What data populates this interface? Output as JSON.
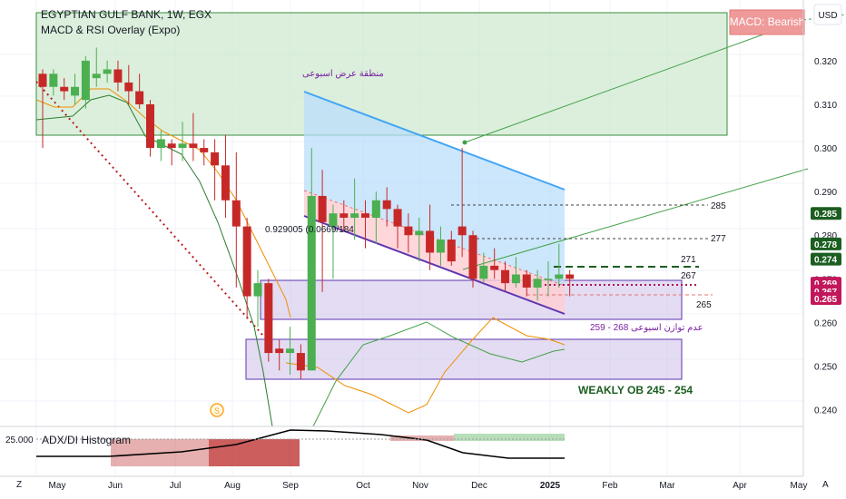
{
  "header": {
    "symbol": "EGYPTIAN GULF BANK, 1W, EGX",
    "indicator": "MACD & RSI Overlay (Expo)"
  },
  "currency_button": "USD",
  "macd_badge": "MACD: Bearish",
  "annotations": {
    "supply_zone": "منطقة عرض اسبوعى",
    "imbalance": "عدم توازن اسبوعى 268 - 259",
    "weekly_ob": "WEAKLY OB  245 - 254",
    "ratio_text": "0.929005 (0.0669/184",
    "levels": [
      "285",
      "277",
      "271",
      "267",
      "265"
    ]
  },
  "lower_pane": {
    "label": "ADX/DI Histogram",
    "value_label": "25.000"
  },
  "axis_bottom_left": "Z",
  "axis_bottom_right": "A",
  "colors": {
    "up": "#4caf50",
    "down": "#c62828",
    "supply_zone": "#388e3c",
    "imbalance_zone": "#7e57c2",
    "tag_green": "#1b5e20",
    "tag_purple": "#c2185b"
  },
  "icons": {
    "dividend_marker": "dividend-s-icon"
  },
  "chart_data": {
    "type": "candlestick",
    "timeframe": "1W",
    "x_labels": [
      "May",
      "Jun",
      "Jul",
      "Aug",
      "Sep",
      "Oct",
      "Nov",
      "Dec",
      "2025",
      "Feb",
      "Mar",
      "Apr",
      "May"
    ],
    "y_ticks": [
      "0.320",
      "0.310",
      "0.300",
      "0.290",
      "0.280",
      "0.270",
      "0.260",
      "0.250",
      "0.240"
    ],
    "ylim": [
      0.237,
      0.331
    ],
    "candles": [
      [
        0.317,
        0.318,
        0.3,
        0.314
      ],
      [
        0.314,
        0.318,
        0.312,
        0.317
      ],
      [
        0.314,
        0.316,
        0.311,
        0.313
      ],
      [
        0.312,
        0.317,
        0.31,
        0.314
      ],
      [
        0.311,
        0.321,
        0.309,
        0.32
      ],
      [
        0.316,
        0.323,
        0.314,
        0.317
      ],
      [
        0.317,
        0.32,
        0.315,
        0.318
      ],
      [
        0.318,
        0.32,
        0.313,
        0.315
      ],
      [
        0.315,
        0.319,
        0.31,
        0.313
      ],
      [
        0.313,
        0.317,
        0.309,
        0.31
      ],
      [
        0.31,
        0.311,
        0.298,
        0.3
      ],
      [
        0.3,
        0.304,
        0.297,
        0.302
      ],
      [
        0.301,
        0.302,
        0.296,
        0.3
      ],
      [
        0.3,
        0.306,
        0.297,
        0.301
      ],
      [
        0.301,
        0.308,
        0.297,
        0.3
      ],
      [
        0.3,
        0.302,
        0.296,
        0.299
      ],
      [
        0.299,
        0.302,
        0.288,
        0.296
      ],
      [
        0.296,
        0.303,
        0.284,
        0.288
      ],
      [
        0.288,
        0.299,
        0.268,
        0.282
      ],
      [
        0.282,
        0.284,
        0.261,
        0.266
      ],
      [
        0.266,
        0.272,
        0.259,
        0.269
      ],
      [
        0.269,
        0.27,
        0.251,
        0.253
      ],
      [
        0.254,
        0.256,
        0.249,
        0.253
      ],
      [
        0.253,
        0.259,
        0.248,
        0.254
      ],
      [
        0.253,
        0.255,
        0.247,
        0.249
      ],
      [
        0.249,
        0.3,
        0.249,
        0.289
      ],
      [
        0.289,
        0.295,
        0.267,
        0.283
      ],
      [
        0.282,
        0.287,
        0.27,
        0.285
      ],
      [
        0.285,
        0.288,
        0.281,
        0.284
      ],
      [
        0.284,
        0.293,
        0.279,
        0.285
      ],
      [
        0.285,
        0.288,
        0.277,
        0.284
      ],
      [
        0.284,
        0.29,
        0.278,
        0.288
      ],
      [
        0.288,
        0.291,
        0.282,
        0.286
      ],
      [
        0.286,
        0.287,
        0.277,
        0.282
      ],
      [
        0.282,
        0.285,
        0.276,
        0.28
      ],
      [
        0.28,
        0.284,
        0.274,
        0.281
      ],
      [
        0.281,
        0.287,
        0.272,
        0.276
      ],
      [
        0.276,
        0.282,
        0.273,
        0.279
      ],
      [
        0.279,
        0.281,
        0.273,
        0.274
      ],
      [
        0.282,
        0.3,
        0.275,
        0.28
      ],
      [
        0.28,
        0.281,
        0.268,
        0.27
      ],
      [
        0.27,
        0.276,
        0.269,
        0.273
      ],
      [
        0.273,
        0.277,
        0.27,
        0.272
      ],
      [
        0.272,
        0.274,
        0.267,
        0.269
      ],
      [
        0.269,
        0.275,
        0.268,
        0.271
      ],
      [
        0.271,
        0.272,
        0.266,
        0.268
      ],
      [
        0.268,
        0.272,
        0.265,
        0.27
      ],
      [
        0.27,
        0.274,
        0.266,
        0.27
      ],
      [
        0.27,
        0.278,
        0.268,
        0.271
      ],
      [
        0.271,
        0.272,
        0.266,
        0.27
      ]
    ],
    "price_tags": [
      {
        "label": "0.285",
        "value": 0.285,
        "color": "#1b5e20"
      },
      {
        "label": "0.278",
        "value": 0.278,
        "color": "#1b5e20"
      },
      {
        "label": "0.274",
        "value": 0.2745,
        "color": "#1b5e20"
      },
      {
        "label": "0.269",
        "value": 0.269,
        "color": "#c2185b"
      },
      {
        "label": "0.267",
        "value": 0.2672,
        "color": "#c2185b"
      },
      {
        "label": "0.265",
        "value": 0.2655,
        "color": "#c2185b"
      }
    ],
    "zones": {
      "supply": [
        0.301,
        0.329
      ],
      "imbalance": [
        0.259,
        0.268
      ],
      "weekly_ob": [
        0.245,
        0.254
      ]
    },
    "levels": [
      0.285,
      0.277,
      0.271,
      0.267,
      0.265
    ]
  }
}
